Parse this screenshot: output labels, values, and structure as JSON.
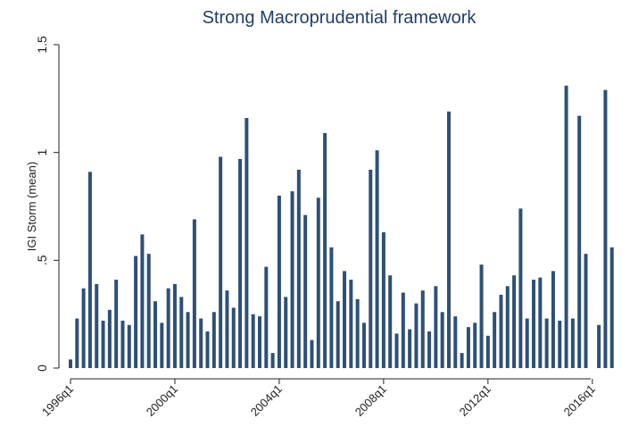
{
  "chart_data": {
    "type": "bar",
    "title": "Strong Macroprudential framework",
    "y_label": "IGI Storm (mean)",
    "color": "#2e5077",
    "categories": [
      "1996q1",
      null,
      null,
      null,
      null,
      null,
      null,
      null,
      null,
      null,
      null,
      null,
      null,
      null,
      null,
      null,
      "2000q1",
      null,
      null,
      null,
      null,
      null,
      null,
      null,
      null,
      null,
      null,
      null,
      null,
      null,
      null,
      null,
      "2004q1",
      null,
      null,
      null,
      null,
      null,
      null,
      null,
      null,
      null,
      null,
      null,
      null,
      null,
      null,
      null,
      "2008q1",
      null,
      null,
      null,
      null,
      null,
      null,
      null,
      null,
      null,
      null,
      null,
      null,
      null,
      null,
      null,
      "2012q1",
      null,
      null,
      null,
      null,
      null,
      null,
      null,
      null,
      null,
      null,
      null,
      null,
      null,
      null,
      null,
      "2016q1",
      null,
      null,
      null
    ],
    "values": [
      0.04,
      0.23,
      0.37,
      0.91,
      0.39,
      0.22,
      0.27,
      0.41,
      0.22,
      0.2,
      0.52,
      0.62,
      0.53,
      0.31,
      0.21,
      0.37,
      0.39,
      0.33,
      0.26,
      0.69,
      0.23,
      0.17,
      0.26,
      0.98,
      0.36,
      0.28,
      0.97,
      1.16,
      0.25,
      0.24,
      0.47,
      0.07,
      0.8,
      0.33,
      0.82,
      0.92,
      0.71,
      0.13,
      0.79,
      1.09,
      0.56,
      0.31,
      0.45,
      0.41,
      0.32,
      0.21,
      0.92,
      1.01,
      0.63,
      0.43,
      0.16,
      0.35,
      0.18,
      0.3,
      0.36,
      0.17,
      0.38,
      0.26,
      1.19,
      0.24,
      0.07,
      0.19,
      0.21,
      0.48,
      0.15,
      0.26,
      0.34,
      0.38,
      0.43,
      0.74,
      0.23,
      0.41,
      0.42,
      0.23,
      0.45,
      0.22,
      1.31,
      0.23,
      1.17,
      0.53,
      null,
      0.2,
      1.29,
      0.56
    ],
    "ylim": [
      0,
      1.5
    ],
    "yticks": [
      0,
      {
        "value": 0.5,
        "label": ".5"
      },
      1,
      1.5
    ]
  }
}
